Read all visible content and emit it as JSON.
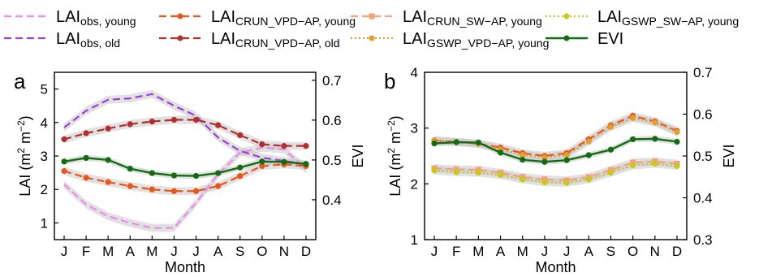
{
  "legend": {
    "entries": [
      {
        "key": "obs_young",
        "main": "LAI",
        "sub": "obs, young",
        "color": "#ee88ee",
        "dash": "dashed",
        "marker": "none"
      },
      {
        "key": "crun_vpd_young",
        "main": "LAI",
        "sub": "CRUN_VPD−AP, young",
        "color": "#e8561c",
        "dash": "dashed",
        "marker": "circle"
      },
      {
        "key": "crun_sw_young",
        "main": "LAI",
        "sub": "CRUN_SW−AP, young",
        "color": "#f4a27a",
        "dash": "dashed",
        "marker": "square"
      },
      {
        "key": "gswp_sw_young",
        "main": "LAI",
        "sub": "GSWP_SW−AP, young",
        "color": "#c8c81e",
        "dash": "dotted",
        "marker": "circle"
      },
      {
        "key": "obs_old",
        "main": "LAI",
        "sub": "obs, old",
        "color": "#9b40d8",
        "dash": "dashed",
        "marker": "none"
      },
      {
        "key": "crun_vpd_old",
        "main": "LAI",
        "sub": "CRUN_VPD−AP, old",
        "color": "#b03030",
        "dash": "dashed",
        "marker": "circle"
      },
      {
        "key": "gswp_vpd_young",
        "main": "LAI",
        "sub": "GSWP_VPD−AP, young",
        "color": "#e0a030",
        "dash": "dotted",
        "marker": "circle"
      },
      {
        "key": "evi",
        "main": "EVI",
        "sub": "",
        "color": "#136b13",
        "dash": "solid",
        "marker": "circle"
      }
    ]
  },
  "chart_data": [
    {
      "type": "line",
      "panel_label": "a",
      "xlabel": "Month",
      "ylabel_main": "LAI (m",
      "ylabel_sup1": "2",
      "ylabel_mid": " m",
      "ylabel_sup2": "−2",
      "ylabel_end": ")",
      "y2label": "EVI",
      "categories": [
        "J",
        "F",
        "M",
        "A",
        "M",
        "J",
        "J",
        "A",
        "S",
        "O",
        "N",
        "D"
      ],
      "ylim": [
        0.5,
        5.5
      ],
      "yticks": [
        "1",
        "2",
        "3",
        "4",
        "5"
      ],
      "y2lim": [
        0.3,
        0.72
      ],
      "y2ticks": [
        "0.4",
        "0.5",
        "0.6",
        "0.7"
      ],
      "series": [
        {
          "key": "obs_young",
          "axis": "left",
          "band": true,
          "values": [
            2.15,
            1.55,
            1.2,
            1.0,
            0.85,
            0.85,
            1.6,
            2.45,
            3.1,
            3.25,
            3.2,
            2.6
          ]
        },
        {
          "key": "obs_old",
          "axis": "left",
          "band": true,
          "values": [
            3.85,
            4.35,
            4.68,
            4.72,
            4.85,
            4.5,
            4.2,
            3.55,
            3.15,
            2.95,
            2.85,
            2.75
          ]
        },
        {
          "key": "crun_vpd_young",
          "axis": "left",
          "band": true,
          "values": [
            2.55,
            2.35,
            2.22,
            2.1,
            2.0,
            1.95,
            1.95,
            2.1,
            2.4,
            2.7,
            2.75,
            2.7
          ]
        },
        {
          "key": "crun_vpd_old",
          "axis": "left",
          "band": true,
          "values": [
            3.5,
            3.68,
            3.82,
            3.95,
            4.03,
            4.08,
            4.08,
            3.92,
            3.62,
            3.35,
            3.3,
            3.3
          ]
        },
        {
          "key": "evi",
          "axis": "right",
          "band": true,
          "values": [
            0.496,
            0.505,
            0.5,
            0.478,
            0.467,
            0.461,
            0.46,
            0.467,
            0.481,
            0.496,
            0.495,
            0.49
          ]
        }
      ]
    },
    {
      "type": "line",
      "panel_label": "b",
      "xlabel": "Month",
      "ylabel_main": "LAI (m",
      "ylabel_sup1": "2",
      "ylabel_mid": " m",
      "ylabel_sup2": "−2",
      "ylabel_end": ")",
      "y2label": "EVI",
      "categories": [
        "J",
        "F",
        "M",
        "A",
        "M",
        "J",
        "J",
        "A",
        "S",
        "O",
        "N",
        "D"
      ],
      "ylim": [
        1,
        4
      ],
      "yticks": [
        "1",
        "2",
        "3",
        "4"
      ],
      "y2lim": [
        0.3,
        0.7
      ],
      "y2ticks": [
        "0.3",
        "0.4",
        "0.5",
        "0.6",
        "0.7"
      ],
      "series": [
        {
          "key": "crun_vpd_young",
          "axis": "left",
          "band": true,
          "values": [
            2.78,
            2.75,
            2.72,
            2.65,
            2.55,
            2.5,
            2.55,
            2.8,
            3.05,
            3.22,
            3.12,
            2.95
          ]
        },
        {
          "key": "gswp_vpd_young",
          "axis": "left",
          "band": true,
          "values": [
            2.78,
            2.75,
            2.72,
            2.62,
            2.52,
            2.47,
            2.52,
            2.76,
            3.02,
            3.18,
            3.1,
            2.93
          ]
        },
        {
          "key": "crun_sw_young",
          "axis": "left",
          "band": true,
          "values": [
            2.28,
            2.26,
            2.25,
            2.2,
            2.12,
            2.08,
            2.06,
            2.12,
            2.25,
            2.38,
            2.4,
            2.36
          ]
        },
        {
          "key": "gswp_sw_young",
          "axis": "left",
          "band": true,
          "values": [
            2.24,
            2.21,
            2.2,
            2.16,
            2.08,
            2.03,
            2.02,
            2.08,
            2.2,
            2.33,
            2.36,
            2.32
          ]
        },
        {
          "key": "evi",
          "axis": "right",
          "band": true,
          "values": [
            0.53,
            0.533,
            0.532,
            0.508,
            0.491,
            0.486,
            0.49,
            0.502,
            0.515,
            0.54,
            0.541,
            0.534
          ]
        }
      ]
    }
  ]
}
